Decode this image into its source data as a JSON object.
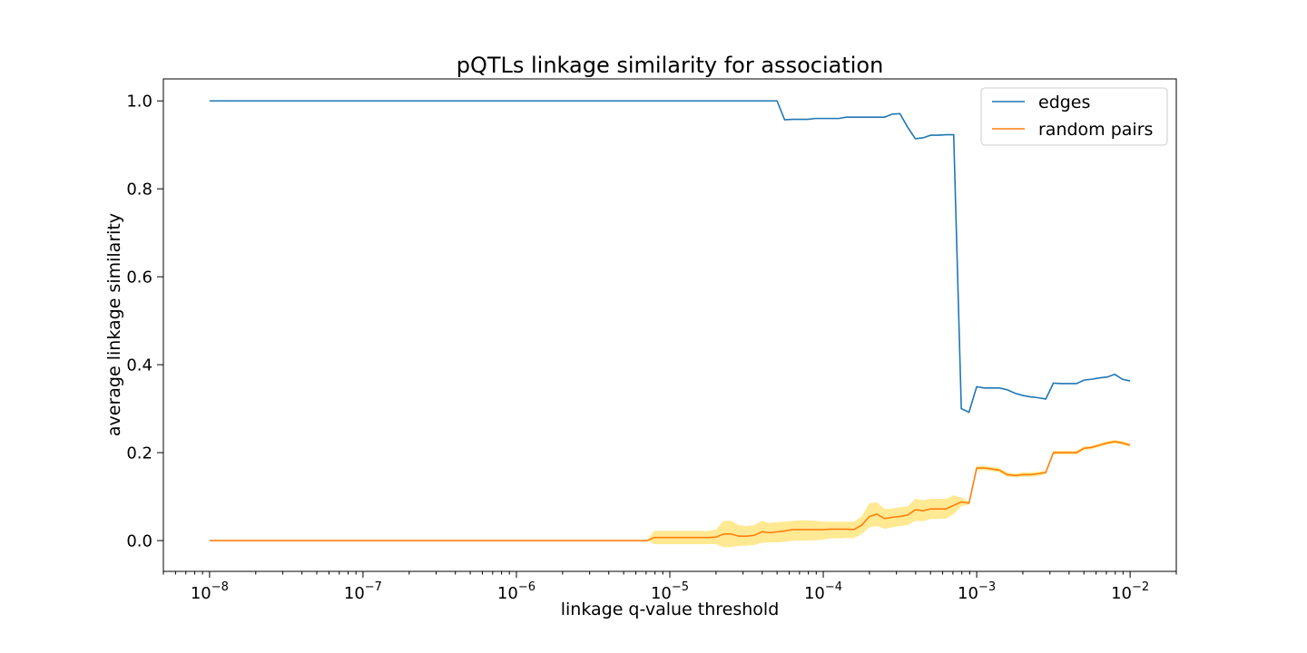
{
  "chart_data": {
    "type": "line",
    "title": "pQTLs linkage similarity for association",
    "xlabel": "linkage q-value threshold",
    "ylabel": "average linkage similarity",
    "x_scale": "log",
    "xlim": [
      5e-09,
      0.02
    ],
    "ylim": [
      -0.07,
      1.05
    ],
    "x_ticks": [
      {
        "base": "10",
        "exp": "−8",
        "value": 1e-08
      },
      {
        "base": "10",
        "exp": "−7",
        "value": 1e-07
      },
      {
        "base": "10",
        "exp": "−6",
        "value": 1e-06
      },
      {
        "base": "10",
        "exp": "−5",
        "value": 1e-05
      },
      {
        "base": "10",
        "exp": "−4",
        "value": 0.0001
      },
      {
        "base": "10",
        "exp": "−3",
        "value": 0.001
      },
      {
        "base": "10",
        "exp": "−2",
        "value": 0.01
      }
    ],
    "y_ticks": [
      "0.0",
      "0.2",
      "0.4",
      "0.6",
      "0.8",
      "1.0"
    ],
    "grid": false,
    "legend_position": "top-right",
    "series": [
      {
        "name": "edges",
        "color": "#1f77b4",
        "x": [
          1e-08,
          5e-05,
          5.6e-05,
          6.3e-05,
          7.1e-05,
          7.9e-05,
          8.9e-05,
          0.0001,
          0.000112,
          0.000126,
          0.000141,
          0.000158,
          0.000178,
          0.0002,
          0.000224,
          0.000251,
          0.000282,
          0.000316,
          0.000355,
          0.000398,
          0.000447,
          0.000501,
          0.000562,
          0.000631,
          0.000708,
          0.000794,
          0.000891,
          0.001,
          0.00112,
          0.00126,
          0.00141,
          0.00158,
          0.00178,
          0.002,
          0.00224,
          0.00251,
          0.00282,
          0.00316,
          0.00355,
          0.00398,
          0.00447,
          0.00501,
          0.00562,
          0.00631,
          0.00708,
          0.00794,
          0.00891,
          0.01
        ],
        "y": [
          1.0,
          1.0,
          0.957,
          0.958,
          0.958,
          0.958,
          0.96,
          0.96,
          0.96,
          0.96,
          0.963,
          0.963,
          0.963,
          0.963,
          0.963,
          0.963,
          0.97,
          0.971,
          0.94,
          0.914,
          0.916,
          0.922,
          0.922,
          0.923,
          0.923,
          0.3,
          0.292,
          0.35,
          0.347,
          0.347,
          0.347,
          0.343,
          0.335,
          0.33,
          0.327,
          0.325,
          0.322,
          0.358,
          0.357,
          0.357,
          0.357,
          0.365,
          0.367,
          0.37,
          0.372,
          0.378,
          0.367,
          0.363
        ]
      },
      {
        "name": "random pairs",
        "color": "#ff7f0e",
        "x": [
          1e-08,
          7.1e-06,
          7.9e-06,
          8.9e-06,
          1e-05,
          1.12e-05,
          1.26e-05,
          1.41e-05,
          1.58e-05,
          1.78e-05,
          2e-05,
          2.24e-05,
          2.51e-05,
          2.82e-05,
          3.16e-05,
          3.55e-05,
          3.98e-05,
          4.47e-05,
          5.01e-05,
          5.62e-05,
          6.31e-05,
          7.08e-05,
          7.94e-05,
          8.91e-05,
          0.0001,
          0.000112,
          0.000126,
          0.000141,
          0.000158,
          0.000178,
          0.0002,
          0.000224,
          0.000251,
          0.000282,
          0.000316,
          0.000355,
          0.000398,
          0.000447,
          0.000501,
          0.000562,
          0.000631,
          0.000708,
          0.000794,
          0.000891,
          0.001,
          0.00112,
          0.00126,
          0.00141,
          0.00158,
          0.00178,
          0.002,
          0.00224,
          0.00251,
          0.00282,
          0.00316,
          0.00355,
          0.00398,
          0.00447,
          0.00501,
          0.00562,
          0.00631,
          0.00708,
          0.00794,
          0.00891,
          0.01
        ],
        "y": [
          0.0,
          0.0,
          0.007,
          0.007,
          0.007,
          0.007,
          0.007,
          0.007,
          0.007,
          0.007,
          0.008,
          0.015,
          0.015,
          0.01,
          0.01,
          0.012,
          0.02,
          0.018,
          0.02,
          0.022,
          0.025,
          0.025,
          0.025,
          0.025,
          0.025,
          0.026,
          0.026,
          0.026,
          0.025,
          0.035,
          0.055,
          0.06,
          0.05,
          0.053,
          0.055,
          0.058,
          0.07,
          0.068,
          0.072,
          0.072,
          0.072,
          0.08,
          0.088,
          0.085,
          0.165,
          0.165,
          0.163,
          0.16,
          0.15,
          0.148,
          0.15,
          0.15,
          0.152,
          0.155,
          0.2,
          0.2,
          0.2,
          0.2,
          0.21,
          0.212,
          0.217,
          0.222,
          0.225,
          0.222,
          0.217
        ],
        "band_upper": [
          0.0,
          0.0,
          0.022,
          0.022,
          0.022,
          0.022,
          0.022,
          0.022,
          0.022,
          0.022,
          0.025,
          0.045,
          0.045,
          0.035,
          0.033,
          0.035,
          0.045,
          0.04,
          0.042,
          0.043,
          0.045,
          0.046,
          0.046,
          0.045,
          0.043,
          0.043,
          0.043,
          0.043,
          0.043,
          0.055,
          0.085,
          0.087,
          0.072,
          0.073,
          0.076,
          0.078,
          0.095,
          0.092,
          0.095,
          0.095,
          0.095,
          0.103,
          0.098,
          0.088,
          0.17,
          0.17,
          0.168,
          0.165,
          0.155,
          0.152,
          0.155,
          0.155,
          0.157,
          0.159,
          0.204,
          0.204,
          0.204,
          0.204,
          0.214,
          0.216,
          0.221,
          0.226,
          0.229,
          0.226,
          0.221
        ],
        "band_lower": [
          0.0,
          0.0,
          -0.008,
          -0.008,
          -0.008,
          -0.008,
          -0.008,
          -0.008,
          -0.008,
          -0.008,
          -0.008,
          -0.015,
          -0.015,
          -0.012,
          -0.012,
          -0.01,
          -0.005,
          -0.004,
          -0.004,
          -0.003,
          0.0,
          0.0,
          0.0,
          0.001,
          0.002,
          0.005,
          0.005,
          0.006,
          0.005,
          0.015,
          0.03,
          0.033,
          0.027,
          0.03,
          0.033,
          0.035,
          0.045,
          0.044,
          0.049,
          0.049,
          0.05,
          0.06,
          0.078,
          0.082,
          0.16,
          0.16,
          0.158,
          0.155,
          0.145,
          0.144,
          0.145,
          0.145,
          0.147,
          0.151,
          0.196,
          0.196,
          0.196,
          0.196,
          0.206,
          0.208,
          0.213,
          0.218,
          0.221,
          0.218,
          0.213
        ],
        "band_color": "#ffe57f"
      }
    ]
  }
}
